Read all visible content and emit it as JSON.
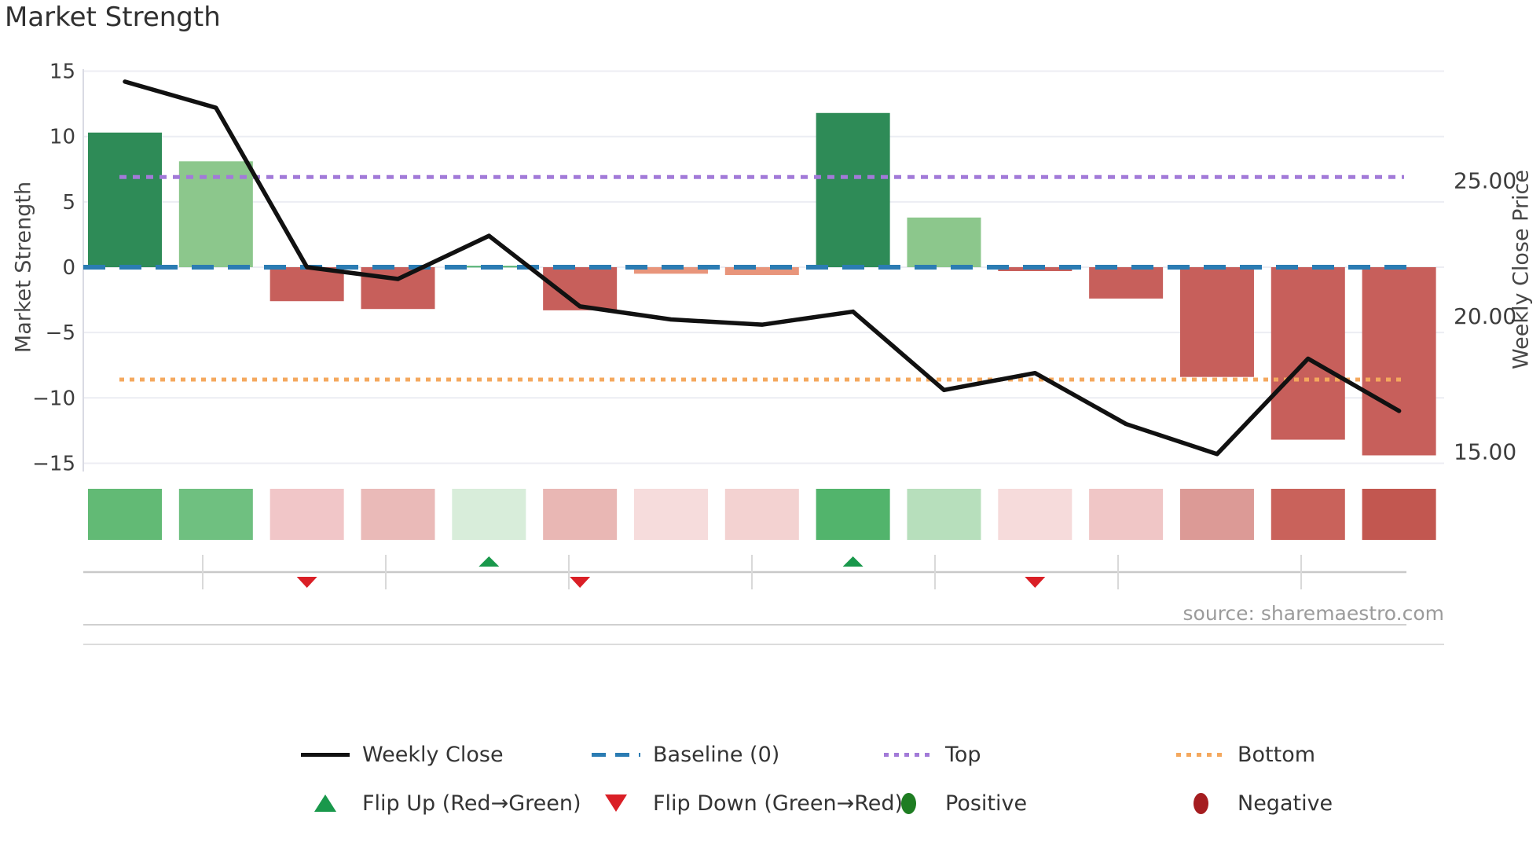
{
  "title": "Market Strength",
  "source_credit": "source: sharemaestro.com",
  "colors": {
    "background": "#ffffff",
    "grid": "#ecedf3",
    "spine": "#d9dae3",
    "marker_axis": "#c9c9c9",
    "marker_tick": "#d9d9d9",
    "divider_line": "#d0d0d0",
    "bottom_spine": "#dcdcdc",
    "tick_text": "#3d3d3d",
    "weekly_close_line": "#111111",
    "baseline": "#2b7cb3",
    "top_line": "#a27ad8",
    "bottom_line": "#f4a85e",
    "flip_up": "#19984b",
    "flip_down": "#da1f26",
    "positive_dot": "#1e7d22",
    "negative_dot": "#a51d20"
  },
  "left_axis": {
    "label": "Market Strength",
    "ticks": [
      {
        "label": "15",
        "value": 15
      },
      {
        "label": "10",
        "value": 10
      },
      {
        "label": "5",
        "value": 5
      },
      {
        "label": "0",
        "value": 0
      },
      {
        "label": "−5",
        "value": -5
      },
      {
        "label": "−10",
        "value": -10
      },
      {
        "label": "−15",
        "value": -15
      }
    ]
  },
  "right_axis": {
    "label": "Weekly Close Price",
    "ticks": [
      {
        "label": "25.00",
        "price": 25
      },
      {
        "label": "20.00",
        "price": 20
      },
      {
        "label": "15.00",
        "price": 15
      }
    ]
  },
  "chart_data": {
    "type": "bar+line",
    "description": "Market strength bars with weekly close price line, reference bands, sentiment heatmap strip and flip markers",
    "n_periods": 15,
    "x_tick_labels_visible": false,
    "bars": {
      "name": "Market Strength",
      "values": [
        10.3,
        8.1,
        -2.6,
        -3.2,
        0.1,
        -3.3,
        -0.5,
        -0.6,
        11.8,
        3.8,
        -0.3,
        -2.4,
        -8.4,
        -13.2,
        -14.4
      ],
      "colors": [
        "#2e8b57",
        "#8cc78c",
        "#c75f5b",
        "#c75f5b",
        "#4daf6e",
        "#c75f5b",
        "#e8957b",
        "#e8957b",
        "#2e8b57",
        "#8cc78c",
        "#c75f5b",
        "#c75f5b",
        "#c75f5b",
        "#c75f5b",
        "#c75f5b"
      ]
    },
    "line": {
      "name": "Weekly Close",
      "axis": "right",
      "values_left_axis_units": [
        14.2,
        12.2,
        0.0,
        -0.9,
        2.4,
        -3.0,
        -4.0,
        -4.4,
        -3.4,
        -9.4,
        -8.1,
        -12.0,
        -14.3,
        -7.0,
        -11.0
      ],
      "approx_price_values": [
        28.6,
        27.7,
        21.8,
        21.4,
        22.9,
        20.3,
        19.9,
        19.7,
        20.2,
        17.3,
        17.9,
        16.0,
        14.9,
        18.4,
        16.5
      ],
      "color": "#111111"
    },
    "reference_lines": {
      "baseline": {
        "label": "Baseline (0)",
        "value": 0,
        "color": "#2b7cb3",
        "style": "dashed"
      },
      "top": {
        "label": "Top",
        "value": 6.9,
        "color": "#a27ad8",
        "style": "dotted"
      },
      "bottom": {
        "label": "Bottom",
        "value": -8.6,
        "color": "#f4a85e",
        "style": "dotted"
      }
    },
    "heatmap_strip": {
      "colors": [
        "#62ba75",
        "#6fc080",
        "#f1c6c8",
        "#eabab8",
        "#d8edda",
        "#e9b7b4",
        "#f6dcdc",
        "#f3d2d1",
        "#52b46c",
        "#b7dfbc",
        "#f6dbdb",
        "#f0c6c6",
        "#dc9a96",
        "#c9625b",
        "#c25750"
      ]
    },
    "flip_markers": {
      "up_label": "Flip Up (Red→Green)",
      "down_label": "Flip Down (Green→Red)",
      "up_at_periods": [
        5,
        9
      ],
      "down_at_periods": [
        3,
        6,
        11
      ]
    },
    "legend_position": "below chart, two rows, four columns",
    "grid": true
  },
  "legend": {
    "items": [
      {
        "swatch": "line",
        "color": "#111111",
        "label": "Weekly Close"
      },
      {
        "swatch": "dash",
        "color": "#2b7cb3",
        "label": "Baseline (0)"
      },
      {
        "swatch": "dot",
        "color": "#a27ad8",
        "label": "Top"
      },
      {
        "swatch": "dot",
        "color": "#f4a85e",
        "label": "Bottom"
      },
      {
        "swatch": "tri-up",
        "color": "#19984b",
        "label": "Flip Up (Red→Green)"
      },
      {
        "swatch": "tri-down",
        "color": "#da1f26",
        "label": "Flip Down (Green→Red)"
      },
      {
        "swatch": "ellipse",
        "color": "#1e7d22",
        "label": "Positive"
      },
      {
        "swatch": "ellipse",
        "color": "#a51d20",
        "label": "Negative"
      }
    ]
  }
}
